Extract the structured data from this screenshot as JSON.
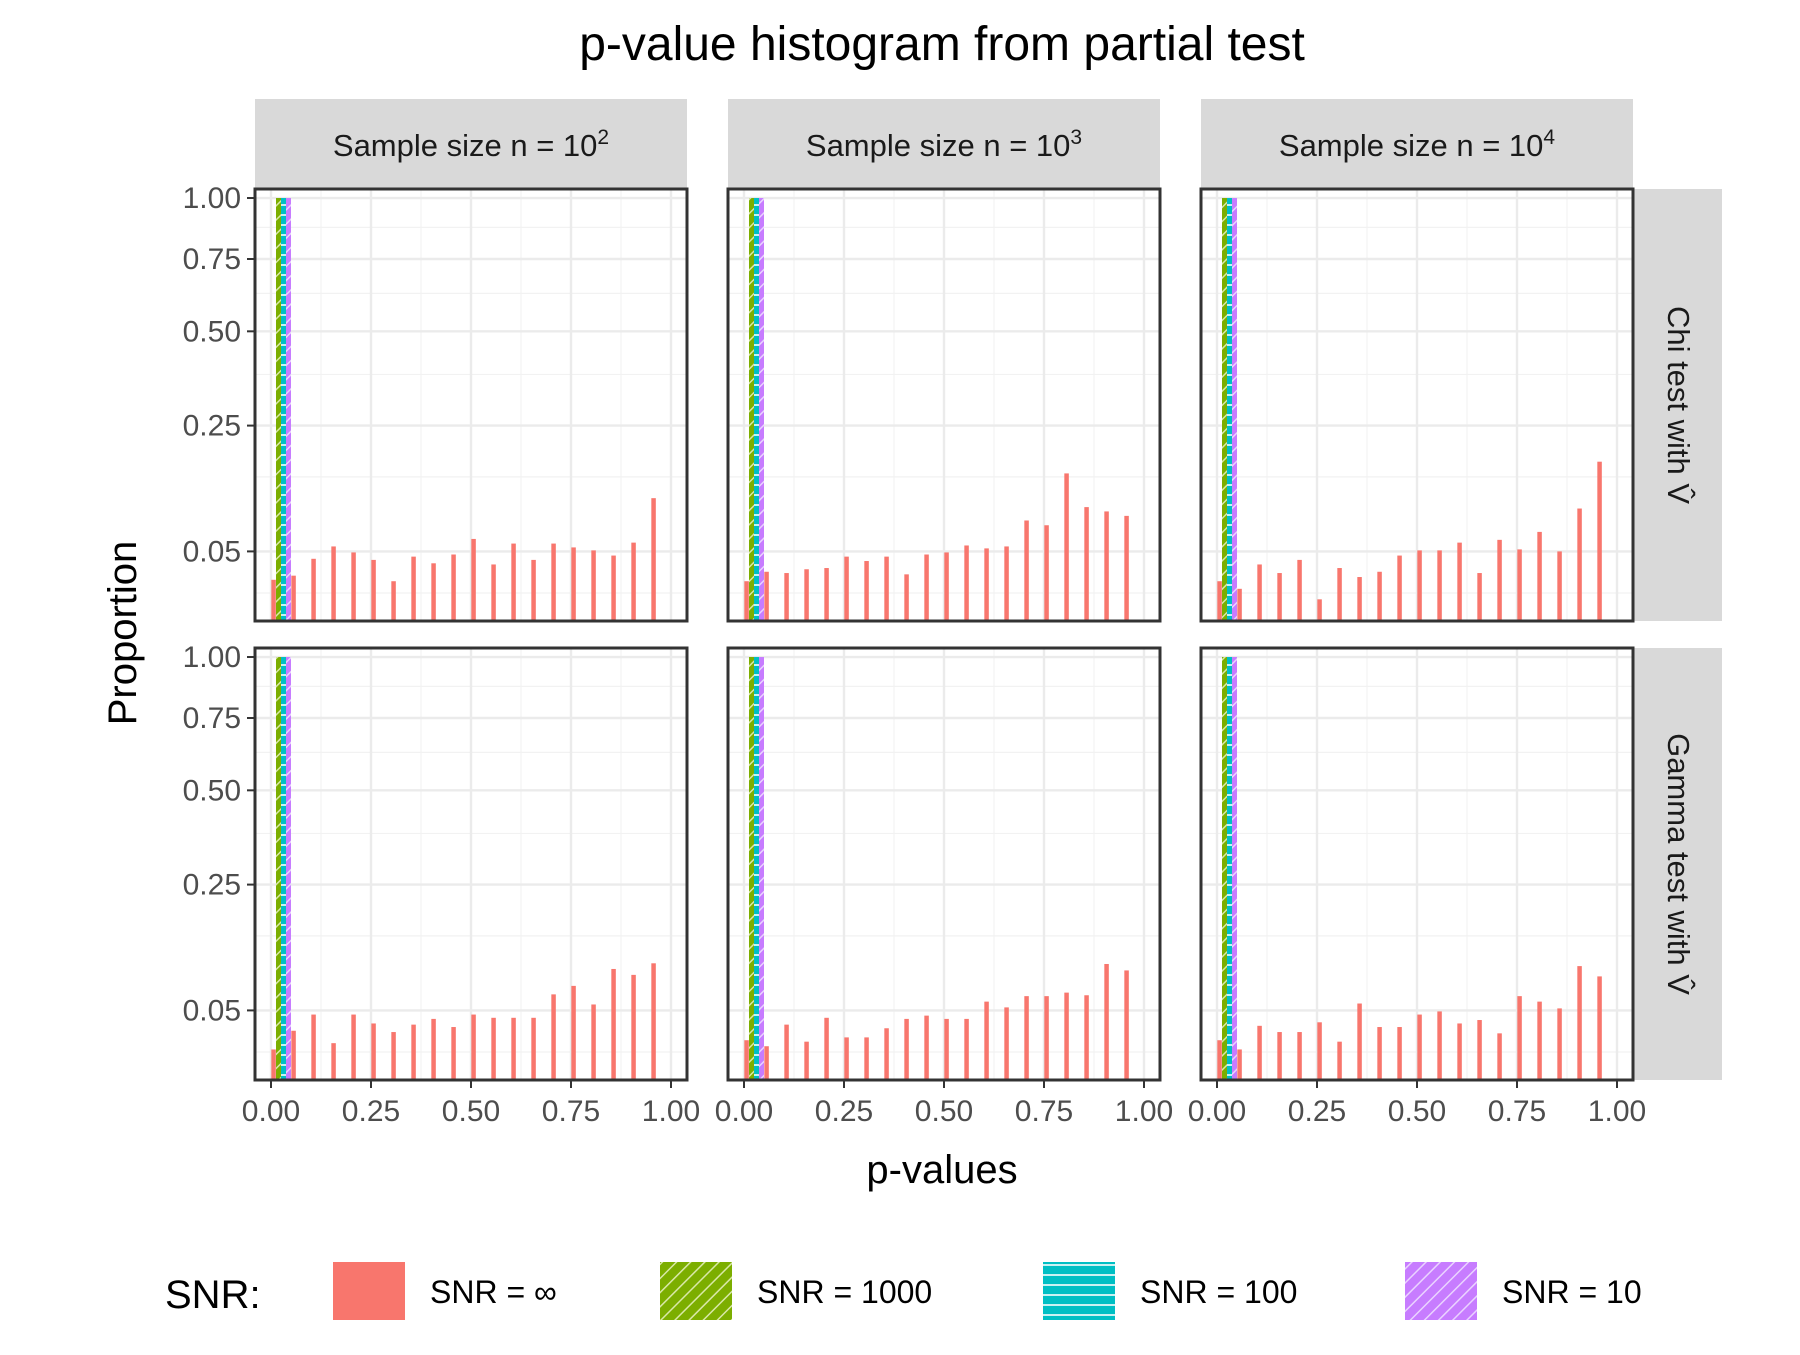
{
  "chart_data": {
    "type": "bar",
    "title": "p-value histogram from partial test",
    "xlabel": "p-values",
    "ylabel": "Proportion",
    "x_ticks": [
      "0.00",
      "0.25",
      "0.50",
      "0.75",
      "1.00"
    ],
    "y_ticks": [
      "1.00",
      "0.75",
      "0.50",
      "0.25",
      "0.05"
    ],
    "y_scale": "sqrt",
    "xlim": [
      -0.04,
      1.04
    ],
    "ylim": [
      0.005,
      1.04
    ],
    "grid": true,
    "legend_title": "SNR:",
    "legend_position": "bottom",
    "legend": [
      {
        "label": "SNR = ∞",
        "color": "#F8766D",
        "pattern": "none"
      },
      {
        "label": "SNR = 1000",
        "color": "#7CAE00",
        "pattern": "stripe"
      },
      {
        "label": "SNR = 100",
        "color": "#00BFC4",
        "pattern": "horizontal"
      },
      {
        "label": "SNR = 10",
        "color": "#C77CFF",
        "pattern": "stripe"
      }
    ],
    "columns": [
      {
        "label": "Sample size n = ",
        "base": "10",
        "exp": "2"
      },
      {
        "label": "Sample size n = ",
        "base": "10",
        "exp": "3"
      },
      {
        "label": "Sample size n = ",
        "base": "10",
        "exp": "4"
      }
    ],
    "rows": [
      {
        "label": "Chi test with V̂"
      },
      {
        "label": "Gamma test with V̂"
      }
    ],
    "bin_centers": [
      0.025,
      0.075,
      0.125,
      0.175,
      0.225,
      0.275,
      0.325,
      0.375,
      0.425,
      0.475,
      0.525,
      0.575,
      0.625,
      0.675,
      0.725,
      0.775,
      0.825,
      0.875,
      0.925,
      0.975
    ],
    "series_values": {
      "SNR = 1000": 1.0,
      "SNR = 100": 1.0,
      "SNR = 10": 1.0
    },
    "panels": [
      {
        "row": 0,
        "col": 0,
        "snr_inf": [
          0.026,
          0.029,
          0.043,
          0.055,
          0.049,
          0.042,
          0.025,
          0.045,
          0.039,
          0.047,
          0.063,
          0.038,
          0.058,
          0.042,
          0.058,
          0.054,
          0.051,
          0.046,
          0.059,
          0.116
        ]
      },
      {
        "row": 0,
        "col": 1,
        "snr_inf": [
          0.025,
          0.032,
          0.031,
          0.034,
          0.035,
          0.045,
          0.041,
          0.045,
          0.03,
          0.047,
          0.049,
          0.056,
          0.053,
          0.055,
          0.085,
          0.079,
          0.156,
          0.103,
          0.097,
          0.091
        ]
      },
      {
        "row": 0,
        "col": 2,
        "snr_inf": [
          0.025,
          0.02,
          0.038,
          0.031,
          0.042,
          0.014,
          0.035,
          0.028,
          0.032,
          0.046,
          0.051,
          0.051,
          0.059,
          0.031,
          0.062,
          0.052,
          0.071,
          0.05,
          0.101,
          0.177
        ]
      },
      {
        "row": 1,
        "col": 0,
        "snr_inf": [
          0.019,
          0.032,
          0.046,
          0.023,
          0.046,
          0.038,
          0.031,
          0.037,
          0.042,
          0.035,
          0.046,
          0.043,
          0.043,
          0.043,
          0.067,
          0.077,
          0.056,
          0.099,
          0.091,
          0.107
        ]
      },
      {
        "row": 1,
        "col": 1,
        "snr_inf": [
          0.025,
          0.021,
          0.037,
          0.024,
          0.043,
          0.027,
          0.027,
          0.034,
          0.042,
          0.045,
          0.042,
          0.042,
          0.059,
          0.053,
          0.065,
          0.065,
          0.069,
          0.066,
          0.106,
          0.097
        ]
      },
      {
        "row": 1,
        "col": 2,
        "snr_inf": [
          0.025,
          0.019,
          0.036,
          0.031,
          0.031,
          0.039,
          0.024,
          0.057,
          0.035,
          0.035,
          0.046,
          0.049,
          0.038,
          0.041,
          0.03,
          0.065,
          0.059,
          0.052,
          0.103,
          0.089
        ]
      }
    ]
  }
}
